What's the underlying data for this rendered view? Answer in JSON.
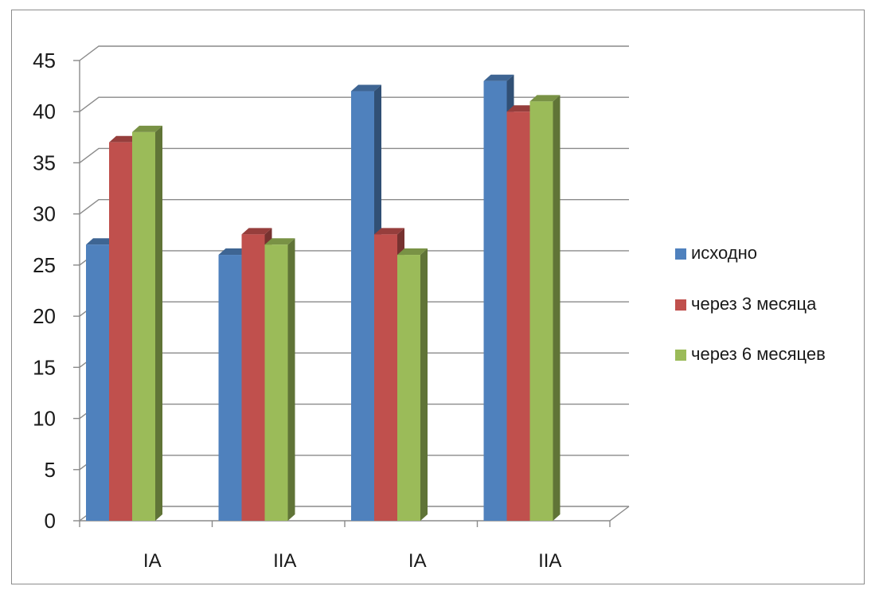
{
  "chart_data": {
    "type": "bar",
    "style": "3d-clustered-column",
    "title": "",
    "xlabel": "",
    "ylabel": "",
    "categories": [
      "IA",
      "IIA",
      "IA",
      "IIA"
    ],
    "series": [
      {
        "name": "исходно",
        "color": "#4f81bd",
        "values": [
          27,
          26,
          42,
          43
        ]
      },
      {
        "name": "через 3 месяца",
        "color": "#c0504d",
        "values": [
          37,
          28,
          28,
          40
        ]
      },
      {
        "name": "через 6 месяцев",
        "color": "#9bbb59",
        "values": [
          38,
          27,
          26,
          41
        ]
      }
    ],
    "ylim": [
      0,
      45
    ],
    "yticks": [
      "0",
      "5",
      "10",
      "15",
      "20",
      "25",
      "30",
      "35",
      "40",
      "45"
    ],
    "grid": true,
    "legend_position": "right"
  }
}
